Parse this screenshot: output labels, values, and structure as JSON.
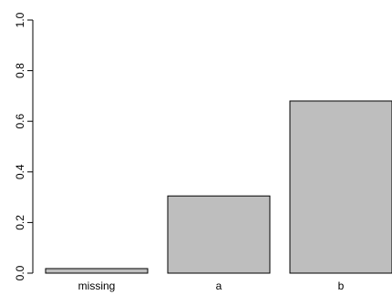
{
  "chart_data": {
    "type": "bar",
    "categories": [
      "missing",
      "a",
      "b"
    ],
    "values": [
      0.018,
      0.305,
      0.68
    ],
    "title": "",
    "xlabel": "",
    "ylabel": "",
    "ylim": [
      0,
      1
    ],
    "yticks": [
      0.0,
      0.2,
      0.4,
      0.6,
      0.8,
      1.0
    ],
    "ytick_labels": [
      "0.0",
      "0.2",
      "0.4",
      "0.6",
      "0.8",
      "1.0"
    ],
    "grid": false,
    "bar_color": "#bebebe",
    "bar_edge_color": "#000000"
  }
}
